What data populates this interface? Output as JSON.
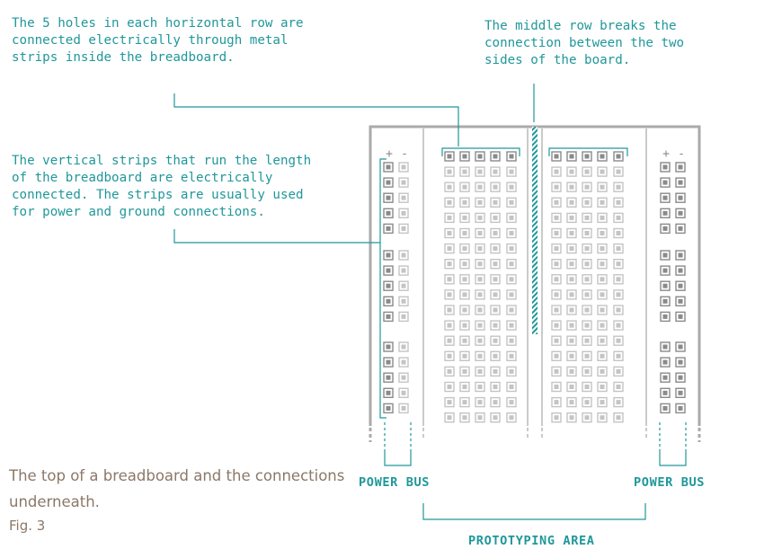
{
  "annotations": {
    "horizontal_rows": [
      "The 5 holes in each horizontal row are",
      "connected electrically through metal",
      "strips inside the breadboard."
    ],
    "middle_row": [
      "The middle row breaks the",
      "connection between the two",
      "sides of the board."
    ],
    "vertical_strips": [
      "The vertical strips that run the length",
      "of the breadboard are electrically",
      "connected. The strips are usually used",
      "for power and ground connections."
    ]
  },
  "bus_polarity": {
    "plus": "+",
    "minus": "-"
  },
  "labels": {
    "power_bus_left": "POWER BUS",
    "power_bus_right": "POWER BUS",
    "prototyping_area": "PROTOTYPING AREA"
  },
  "caption": {
    "text": "The top of a breadboard and the connections underneath.",
    "figure": "Fig. 3"
  },
  "colors": {
    "accent": "#20979a",
    "board_frame": "#aaaaaa",
    "hole_dark": "#8a8a8a",
    "hole_light": "#c4c4c4",
    "caption": "#8b7868"
  },
  "board": {
    "terminal_rows": 18,
    "holes_per_row": 5,
    "bus_groups": 3,
    "holes_per_bus_group": 5
  }
}
